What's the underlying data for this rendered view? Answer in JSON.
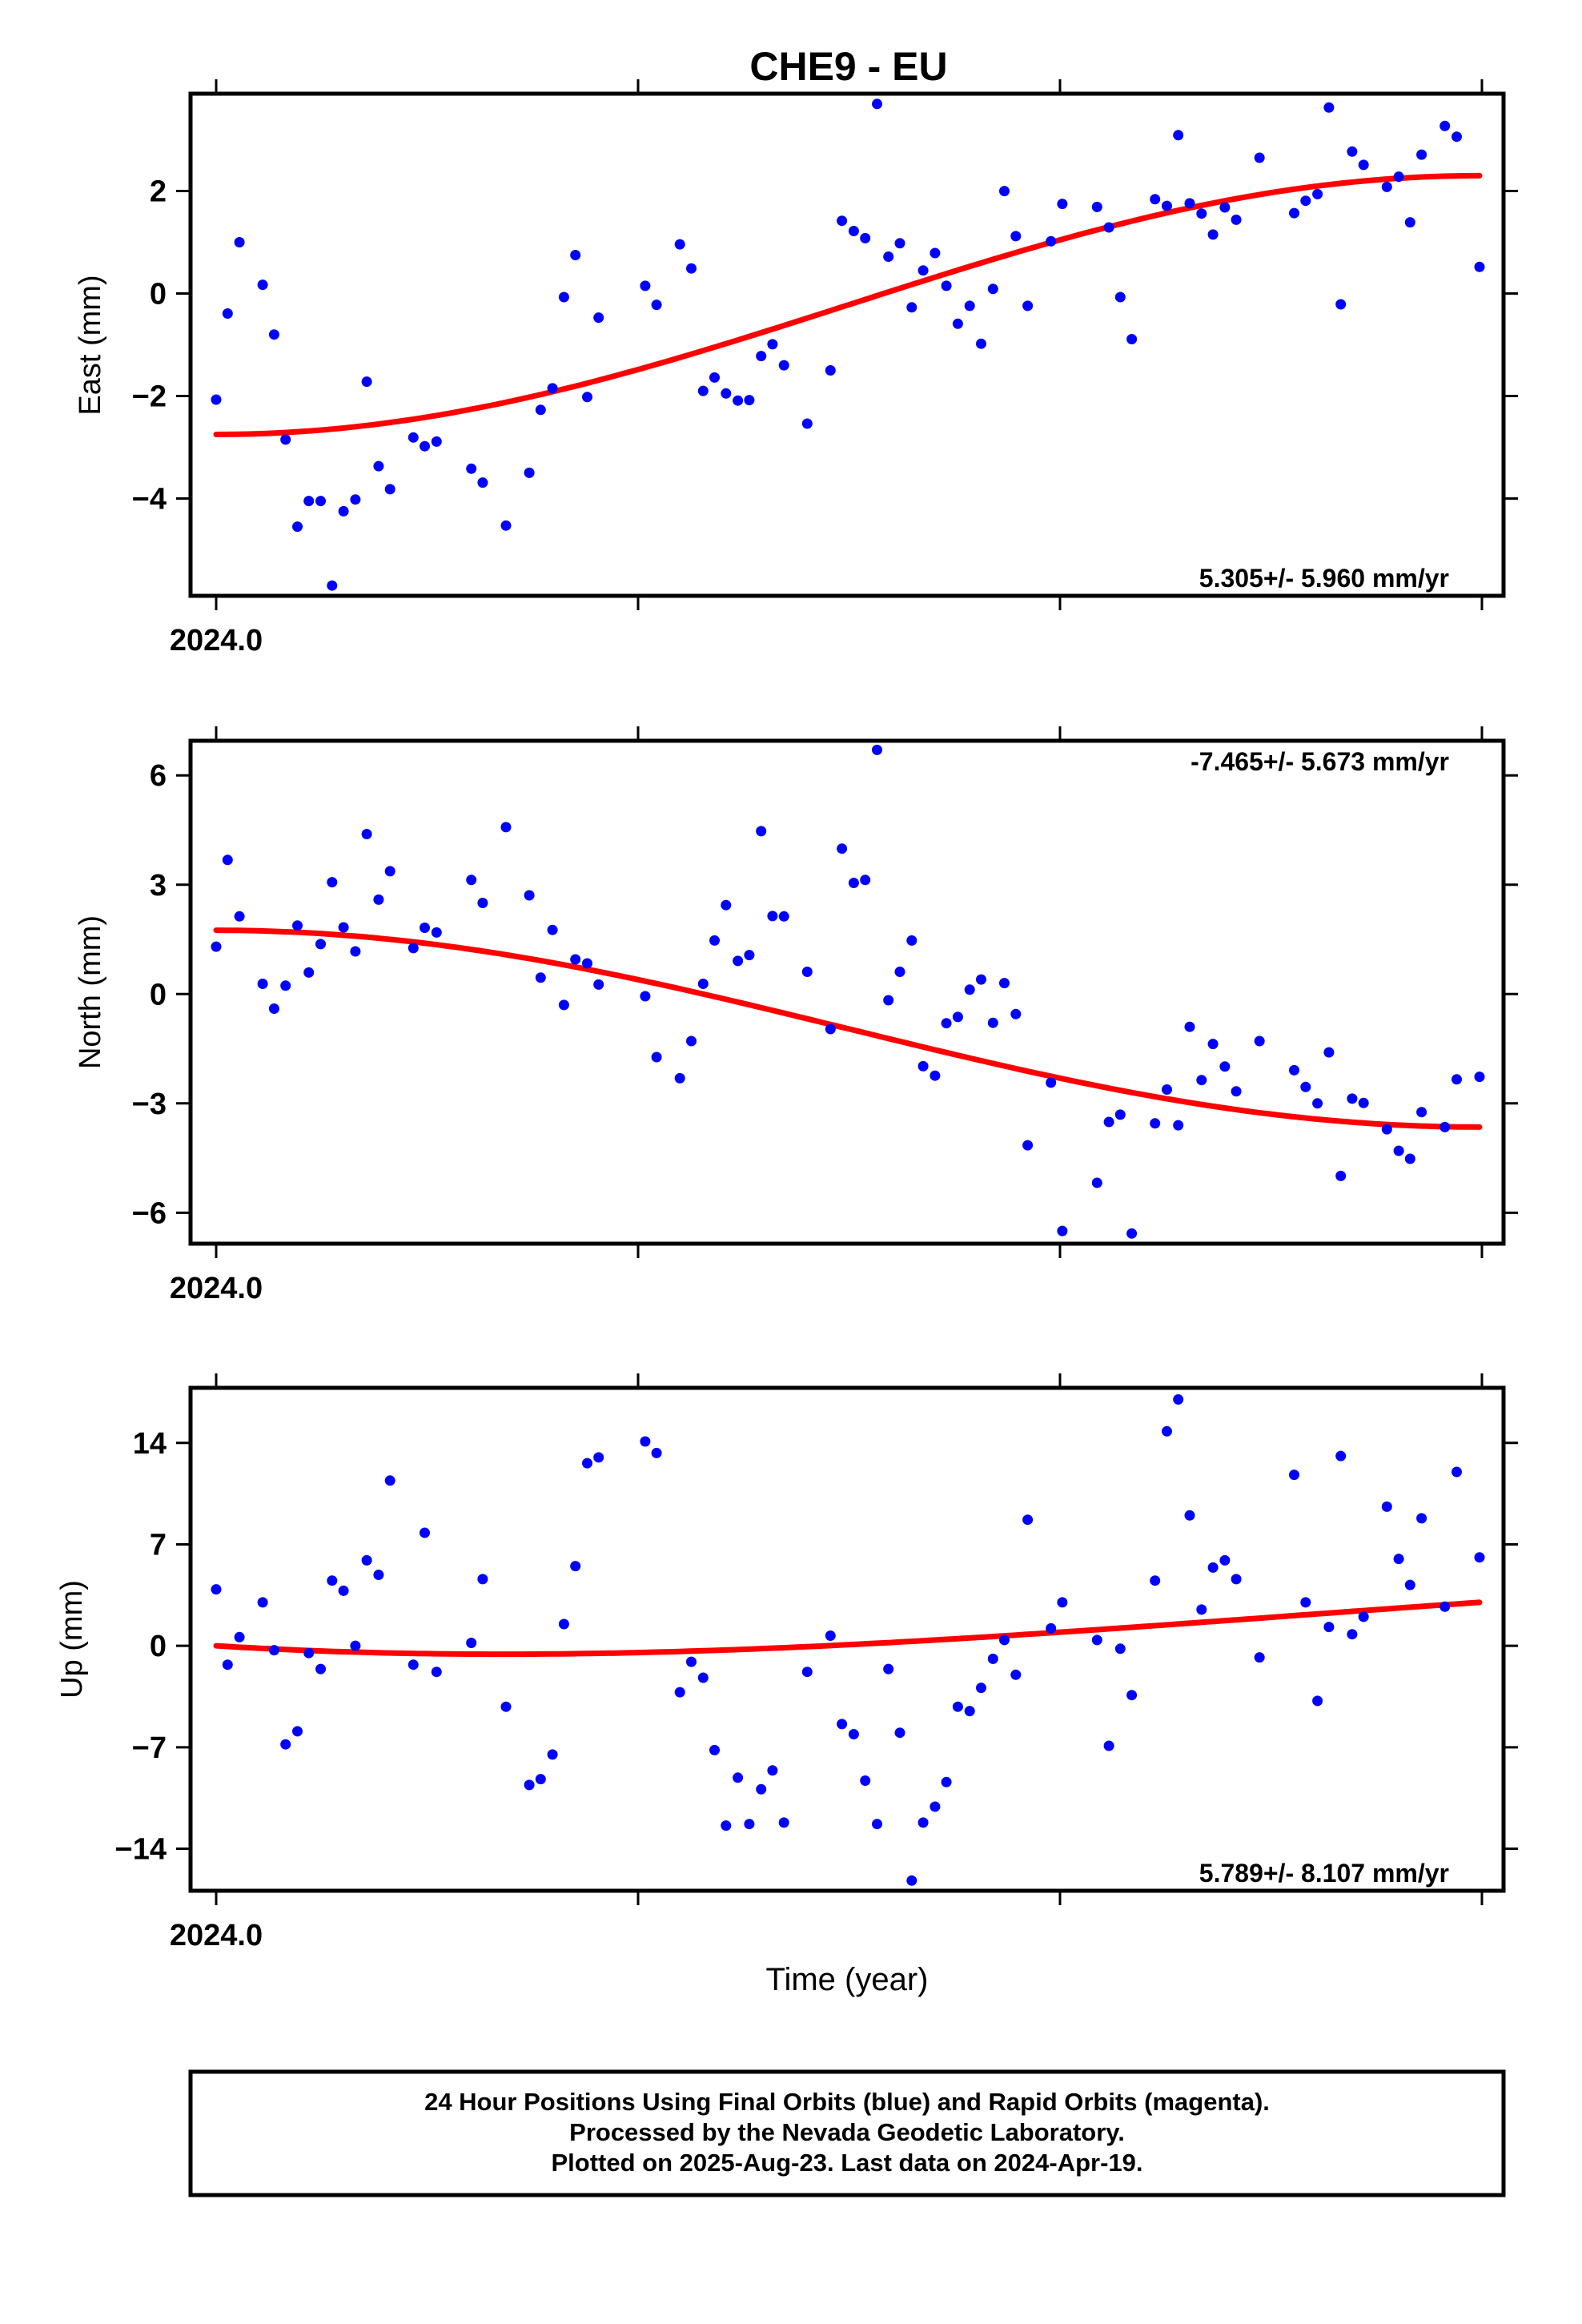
{
  "chart_data": {
    "title": "CHE9 - EU",
    "xlabel": "Time (year)",
    "xlim": [
      2024.0,
      2024.3
    ],
    "x_tick_label": "2024.0",
    "footer": [
      "24 Hour Positions Using Final Orbits (blue) and Rapid Orbits (magenta).",
      "Processed by the Nevada Geodetic Laboratory.",
      "Plotted on 2025-Aug-23. Last data on 2024-Apr-19."
    ],
    "colors": {
      "final_orbits": "#0000ff",
      "fit": "#ff0000",
      "frame": "#000000"
    },
    "panels": [
      {
        "type": "scatter",
        "ylabel": "East (mm)",
        "ylim": [
          -5.9,
          3.9
        ],
        "yticks": [
          2,
          0,
          -2,
          -4
        ],
        "ytick_labels": [
          "2",
          "0",
          "−2",
          "−4"
        ],
        "rate": "5.305+/- 5.960 mm/yr",
        "rate_position": "bottom-right",
        "trend_start": -2.75,
        "trend_end": 2.3,
        "trend_shape": "s-curve",
        "points": [
          [
            2024.0,
            -2.07
          ],
          [
            2024.0027,
            -0.39
          ],
          [
            2024.0055,
            1.0
          ],
          [
            2024.011,
            0.17
          ],
          [
            2024.0137,
            -0.8
          ],
          [
            2024.0164,
            -2.85
          ],
          [
            2024.0192,
            -4.55
          ],
          [
            2024.0219,
            -4.05
          ],
          [
            2024.0247,
            -4.05
          ],
          [
            2024.0274,
            -5.7
          ],
          [
            2024.0301,
            -4.25
          ],
          [
            2024.0329,
            -4.02
          ],
          [
            2024.0356,
            -1.72
          ],
          [
            2024.0384,
            -3.37
          ],
          [
            2024.0411,
            -3.82
          ],
          [
            2024.0466,
            -2.81
          ],
          [
            2024.0493,
            -2.98
          ],
          [
            2024.0521,
            -2.89
          ],
          [
            2024.0603,
            -3.42
          ],
          [
            2024.063,
            -3.69
          ],
          [
            2024.0685,
            -4.53
          ],
          [
            2024.074,
            -3.5
          ],
          [
            2024.0767,
            -2.27
          ],
          [
            2024.0795,
            -1.85
          ],
          [
            2024.0822,
            -0.07
          ],
          [
            2024.0849,
            0.75
          ],
          [
            2024.0877,
            -2.02
          ],
          [
            2024.0904,
            -0.47
          ],
          [
            2024.1014,
            0.15
          ],
          [
            2024.1041,
            -0.22
          ],
          [
            2024.1096,
            0.96
          ],
          [
            2024.1123,
            0.49
          ],
          [
            2024.1151,
            -1.9
          ],
          [
            2024.1178,
            -1.64
          ],
          [
            2024.1205,
            -1.95
          ],
          [
            2024.1233,
            -2.09
          ],
          [
            2024.126,
            -2.08
          ],
          [
            2024.1288,
            -1.22
          ],
          [
            2024.1315,
            -0.99
          ],
          [
            2024.1342,
            -1.4
          ],
          [
            2024.1397,
            -2.54
          ],
          [
            2024.1452,
            -1.5
          ],
          [
            2024.1479,
            1.42
          ],
          [
            2024.1507,
            1.22
          ],
          [
            2024.1534,
            1.08
          ],
          [
            2024.1562,
            3.7
          ],
          [
            2024.1589,
            0.72
          ],
          [
            2024.1616,
            0.98
          ],
          [
            2024.1644,
            -0.27
          ],
          [
            2024.1671,
            0.45
          ],
          [
            2024.1699,
            0.79
          ],
          [
            2024.1726,
            0.15
          ],
          [
            2024.1753,
            -0.59
          ],
          [
            2024.1781,
            -0.24
          ],
          [
            2024.1808,
            -0.98
          ],
          [
            2024.1836,
            0.09
          ],
          [
            2024.1863,
            2.0
          ],
          [
            2024.189,
            1.12
          ],
          [
            2024.1918,
            -0.24
          ],
          [
            2024.1973,
            1.02
          ],
          [
            2024.2,
            1.75
          ],
          [
            2024.2082,
            1.69
          ],
          [
            2024.211,
            1.29
          ],
          [
            2024.2137,
            -0.07
          ],
          [
            2024.2164,
            -0.89
          ],
          [
            2024.2219,
            1.84
          ],
          [
            2024.2247,
            1.71
          ],
          [
            2024.2274,
            3.09
          ],
          [
            2024.2301,
            1.76
          ],
          [
            2024.2329,
            1.56
          ],
          [
            2024.2356,
            1.15
          ],
          [
            2024.2384,
            1.68
          ],
          [
            2024.2411,
            1.44
          ],
          [
            2024.2466,
            2.65
          ],
          [
            2024.2548,
            1.57
          ],
          [
            2024.2575,
            1.81
          ],
          [
            2024.2603,
            1.94
          ],
          [
            2024.263,
            3.63
          ],
          [
            2024.2658,
            -0.21
          ],
          [
            2024.2685,
            2.77
          ],
          [
            2024.2712,
            2.51
          ],
          [
            2024.2767,
            2.08
          ],
          [
            2024.2795,
            2.28
          ],
          [
            2024.2822,
            1.39
          ],
          [
            2024.2849,
            2.71
          ],
          [
            2024.2904,
            3.27
          ],
          [
            2024.2932,
            3.06
          ],
          [
            2024.2986,
            0.52
          ]
        ]
      },
      {
        "type": "scatter",
        "ylabel": "North (mm)",
        "ylim": [
          -6.85,
          6.95
        ],
        "yticks": [
          6,
          3,
          0,
          -3,
          -6
        ],
        "ytick_labels": [
          "6",
          "3",
          "0",
          "−3",
          "−6"
        ],
        "rate": "-7.465+/- 5.673 mm/yr",
        "rate_position": "top-right",
        "trend_start": 1.75,
        "trend_end": -3.65,
        "trend_shape": "s-curve",
        "points": [
          [
            2024.0,
            1.3
          ],
          [
            2024.0027,
            3.68
          ],
          [
            2024.0055,
            2.13
          ],
          [
            2024.011,
            0.28
          ],
          [
            2024.0137,
            -0.4
          ],
          [
            2024.0164,
            0.23
          ],
          [
            2024.0192,
            1.88
          ],
          [
            2024.0219,
            0.59
          ],
          [
            2024.0247,
            1.37
          ],
          [
            2024.0274,
            3.07
          ],
          [
            2024.0301,
            1.83
          ],
          [
            2024.0329,
            1.17
          ],
          [
            2024.0356,
            4.39
          ],
          [
            2024.0384,
            2.59
          ],
          [
            2024.0411,
            3.37
          ],
          [
            2024.0466,
            1.26
          ],
          [
            2024.0493,
            1.82
          ],
          [
            2024.0521,
            1.69
          ],
          [
            2024.0603,
            3.13
          ],
          [
            2024.063,
            2.5
          ],
          [
            2024.0685,
            4.58
          ],
          [
            2024.074,
            2.71
          ],
          [
            2024.0767,
            0.45
          ],
          [
            2024.0795,
            1.76
          ],
          [
            2024.0822,
            -0.3
          ],
          [
            2024.0849,
            0.95
          ],
          [
            2024.0877,
            0.84
          ],
          [
            2024.0904,
            0.26
          ],
          [
            2024.1014,
            -0.06
          ],
          [
            2024.1041,
            -1.73
          ],
          [
            2024.1096,
            -2.31
          ],
          [
            2024.1123,
            -1.29
          ],
          [
            2024.1151,
            0.28
          ],
          [
            2024.1178,
            1.47
          ],
          [
            2024.1205,
            2.44
          ],
          [
            2024.1233,
            0.91
          ],
          [
            2024.126,
            1.07
          ],
          [
            2024.1288,
            4.47
          ],
          [
            2024.1315,
            2.14
          ],
          [
            2024.1342,
            2.13
          ],
          [
            2024.1397,
            0.61
          ],
          [
            2024.1452,
            -0.96
          ],
          [
            2024.1479,
            3.99
          ],
          [
            2024.1507,
            3.05
          ],
          [
            2024.1534,
            3.13
          ],
          [
            2024.1562,
            6.7
          ],
          [
            2024.1589,
            -0.17
          ],
          [
            2024.1616,
            0.61
          ],
          [
            2024.1644,
            1.47
          ],
          [
            2024.1671,
            -1.98
          ],
          [
            2024.1699,
            -2.24
          ],
          [
            2024.1726,
            -0.8
          ],
          [
            2024.1753,
            -0.63
          ],
          [
            2024.1781,
            0.12
          ],
          [
            2024.1808,
            0.4
          ],
          [
            2024.1836,
            -0.79
          ],
          [
            2024.1863,
            0.3
          ],
          [
            2024.189,
            -0.55
          ],
          [
            2024.1918,
            -4.15
          ],
          [
            2024.1973,
            -2.43
          ],
          [
            2024.2,
            -6.5
          ],
          [
            2024.2082,
            -5.18
          ],
          [
            2024.211,
            -3.51
          ],
          [
            2024.2137,
            -3.31
          ],
          [
            2024.2164,
            -6.57
          ],
          [
            2024.2219,
            -3.55
          ],
          [
            2024.2247,
            -2.62
          ],
          [
            2024.2274,
            -3.6
          ],
          [
            2024.2301,
            -0.9
          ],
          [
            2024.2329,
            -2.36
          ],
          [
            2024.2356,
            -1.37
          ],
          [
            2024.2384,
            -1.99
          ],
          [
            2024.2411,
            -2.67
          ],
          [
            2024.2466,
            -1.29
          ],
          [
            2024.2548,
            -2.09
          ],
          [
            2024.2575,
            -2.55
          ],
          [
            2024.2603,
            -3.0
          ],
          [
            2024.263,
            -1.6
          ],
          [
            2024.2658,
            -4.99
          ],
          [
            2024.2685,
            -2.87
          ],
          [
            2024.2712,
            -2.99
          ],
          [
            2024.2767,
            -3.71
          ],
          [
            2024.2795,
            -4.3
          ],
          [
            2024.2822,
            -4.52
          ],
          [
            2024.2849,
            -3.24
          ],
          [
            2024.2904,
            -3.65
          ],
          [
            2024.2932,
            -2.34
          ],
          [
            2024.2986,
            -2.27
          ]
        ]
      },
      {
        "type": "scatter",
        "ylabel": "Up (mm)",
        "ylim": [
          -16.9,
          17.8
        ],
        "yticks": [
          14,
          7,
          0,
          -7,
          -14
        ],
        "ytick_labels": [
          "14",
          "7",
          "0",
          "−7",
          "−14"
        ],
        "rate": "5.789+/- 8.107 mm/yr",
        "rate_position": "bottom-right",
        "trend_start": 0.0,
        "trend_end": 3.0,
        "trend_shape": "dip",
        "points": [
          [
            2024.0,
            3.9
          ],
          [
            2024.0027,
            -1.3
          ],
          [
            2024.0055,
            0.6
          ],
          [
            2024.011,
            3.0
          ],
          [
            2024.0137,
            -0.3
          ],
          [
            2024.0164,
            -6.8
          ],
          [
            2024.0192,
            -5.9
          ],
          [
            2024.0219,
            -0.5
          ],
          [
            2024.0247,
            -1.6
          ],
          [
            2024.0274,
            4.5
          ],
          [
            2024.0301,
            3.8
          ],
          [
            2024.0329,
            0.0
          ],
          [
            2024.0356,
            5.9
          ],
          [
            2024.0384,
            4.9
          ],
          [
            2024.0411,
            11.4
          ],
          [
            2024.0466,
            -1.3
          ],
          [
            2024.0493,
            7.8
          ],
          [
            2024.0521,
            -1.8
          ],
          [
            2024.0603,
            0.2
          ],
          [
            2024.063,
            4.6
          ],
          [
            2024.0685,
            -4.2
          ],
          [
            2024.074,
            -9.6
          ],
          [
            2024.0767,
            -9.2
          ],
          [
            2024.0795,
            -7.5
          ],
          [
            2024.0822,
            1.5
          ],
          [
            2024.0849,
            5.5
          ],
          [
            2024.0877,
            12.6
          ],
          [
            2024.0904,
            13.0
          ],
          [
            2024.1014,
            14.1
          ],
          [
            2024.1041,
            13.3
          ],
          [
            2024.1096,
            -3.2
          ],
          [
            2024.1123,
            -1.1
          ],
          [
            2024.1151,
            -2.2
          ],
          [
            2024.1178,
            -7.2
          ],
          [
            2024.1205,
            -12.4
          ],
          [
            2024.1233,
            -9.1
          ],
          [
            2024.126,
            -12.3
          ],
          [
            2024.1288,
            -9.9
          ],
          [
            2024.1315,
            -8.6
          ],
          [
            2024.1342,
            -12.2
          ],
          [
            2024.1397,
            -1.8
          ],
          [
            2024.1452,
            0.7
          ],
          [
            2024.1479,
            -5.4
          ],
          [
            2024.1507,
            -6.1
          ],
          [
            2024.1534,
            -9.3
          ],
          [
            2024.1562,
            -12.3
          ],
          [
            2024.1589,
            -1.6
          ],
          [
            2024.1616,
            -6.0
          ],
          [
            2024.1644,
            -16.2
          ],
          [
            2024.1671,
            -12.2
          ],
          [
            2024.1699,
            -11.1
          ],
          [
            2024.1726,
            -9.4
          ],
          [
            2024.1753,
            -4.2
          ],
          [
            2024.1781,
            -4.5
          ],
          [
            2024.1808,
            -2.9
          ],
          [
            2024.1836,
            -0.9
          ],
          [
            2024.1863,
            0.4
          ],
          [
            2024.189,
            -2.0
          ],
          [
            2024.1918,
            8.7
          ],
          [
            2024.1973,
            1.2
          ],
          [
            2024.2,
            3.0
          ],
          [
            2024.2082,
            0.4
          ],
          [
            2024.211,
            -6.9
          ],
          [
            2024.2137,
            -0.2
          ],
          [
            2024.2164,
            -3.4
          ],
          [
            2024.2219,
            4.5
          ],
          [
            2024.2247,
            14.8
          ],
          [
            2024.2274,
            17.0
          ],
          [
            2024.2301,
            9.0
          ],
          [
            2024.2329,
            2.5
          ],
          [
            2024.2356,
            5.4
          ],
          [
            2024.2384,
            5.9
          ],
          [
            2024.2411,
            4.6
          ],
          [
            2024.2466,
            -0.8
          ],
          [
            2024.2548,
            11.8
          ],
          [
            2024.2575,
            3.0
          ],
          [
            2024.2603,
            -3.8
          ],
          [
            2024.263,
            1.3
          ],
          [
            2024.2658,
            13.1
          ],
          [
            2024.2685,
            0.8
          ],
          [
            2024.2712,
            2.0
          ],
          [
            2024.2767,
            9.6
          ],
          [
            2024.2795,
            6.0
          ],
          [
            2024.2822,
            4.2
          ],
          [
            2024.2849,
            8.8
          ],
          [
            2024.2904,
            2.7
          ],
          [
            2024.2932,
            12.0
          ],
          [
            2024.2986,
            6.1
          ]
        ]
      }
    ]
  }
}
